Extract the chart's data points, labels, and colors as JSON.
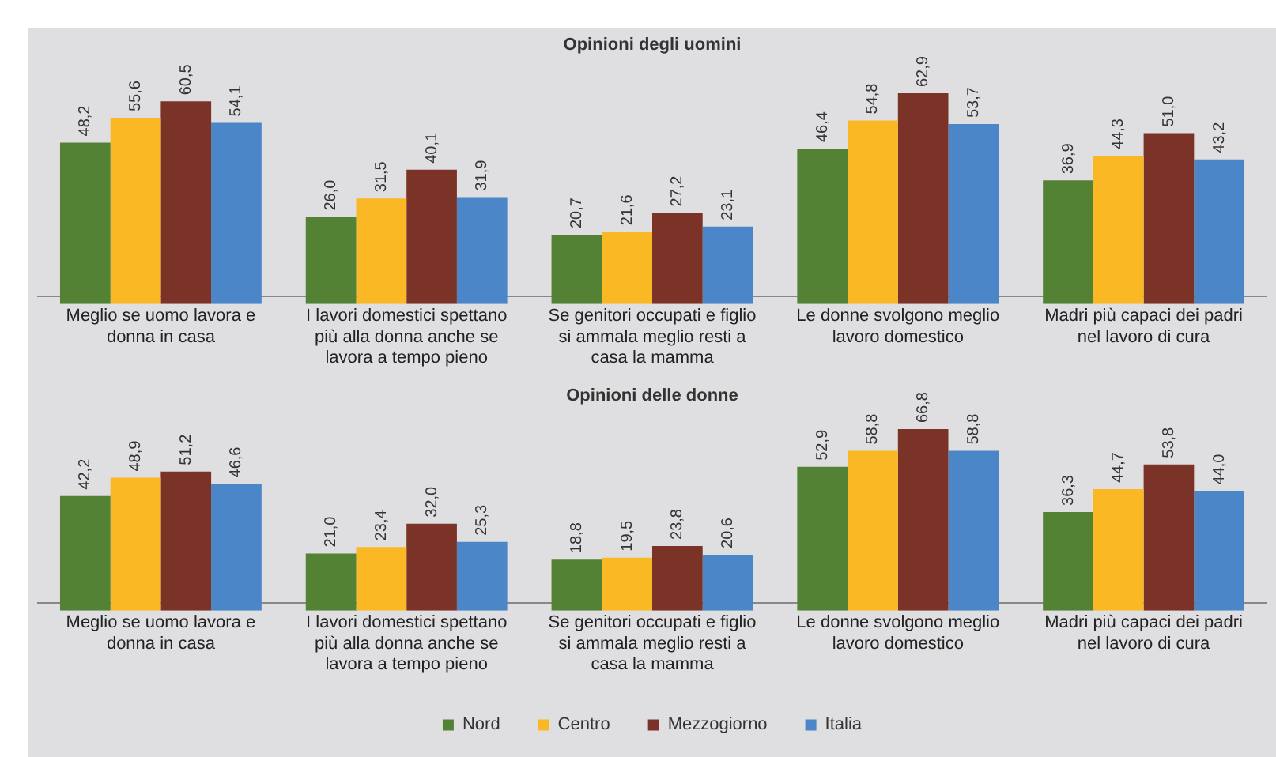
{
  "chart_data": [
    {
      "type": "bar",
      "title": "Opinioni degli uomini",
      "categories": [
        "Meglio se uomo lavora e donna in casa",
        "I lavori domestici spettano più alla donna anche se lavora a tempo pieno",
        "Se genitori occupati e figlio si ammala meglio resti a casa la mamma",
        "Le donne svolgono meglio lavoro domestico",
        "Madri più capaci dei padri nel lavoro di cura"
      ],
      "series": [
        {
          "color": "#548235",
          "values": [
            48.2,
            26.0,
            20.7,
            46.4,
            36.9
          ],
          "value_labels": [
            "48,2",
            "26,0",
            "20,7",
            "46,4",
            "36,9"
          ]
        },
        {
          "color": "#f9b824",
          "values": [
            55.6,
            31.5,
            21.6,
            54.8,
            44.3
          ],
          "value_labels": [
            "55,6",
            "31,5",
            "21,6",
            "54,8",
            "44,3"
          ]
        },
        {
          "color": "#7b3328",
          "values": [
            60.5,
            40.1,
            27.2,
            62.9,
            51.0
          ],
          "value_labels": [
            "60,5",
            "40,1",
            "27,2",
            "62,9",
            "51,0"
          ]
        },
        {
          "color": "#4a86c8",
          "values": [
            54.1,
            31.9,
            23.1,
            53.7,
            43.2
          ],
          "value_labels": [
            "54,1",
            "31,9",
            "23,1",
            "53,7",
            "43,2"
          ]
        }
      ],
      "grid": false,
      "legend": false,
      "tick_labels": "x"
    },
    {
      "type": "bar",
      "title": "Opinioni delle donne",
      "categories": [
        "Meglio se uomo lavora e donna in casa",
        "I lavori domestici spettano più alla donna anche se lavora a tempo pieno",
        "Se genitori occupati e figlio si ammala meglio resti a casa la mamma",
        "Le donne svolgono meglio lavoro domestico",
        "Madri più capaci dei padri nel lavoro di cura"
      ],
      "series": [
        {
          "name": "Nord",
          "color": "#548235",
          "values": [
            42.2,
            21.0,
            18.8,
            52.9,
            36.3
          ],
          "value_labels": [
            "42,2",
            "21,0",
            "18,8",
            "52,9",
            "36,3"
          ]
        },
        {
          "name": "Centro",
          "color": "#f9b824",
          "values": [
            48.9,
            23.4,
            19.5,
            58.8,
            44.7
          ],
          "value_labels": [
            "48,9",
            "23,4",
            "19,5",
            "58,8",
            "44,7"
          ]
        },
        {
          "name": "Mezzogiorno",
          "color": "#7b3328",
          "values": [
            51.2,
            32.0,
            23.8,
            66.8,
            53.8
          ],
          "value_labels": [
            "51,2",
            "32,0",
            "23,8",
            "66,8",
            "53,8"
          ]
        },
        {
          "name": "Italia",
          "color": "#4a86c8",
          "values": [
            46.6,
            25.3,
            20.6,
            58.8,
            44.0
          ],
          "value_labels": [
            "46,6",
            "25,3",
            "20,6",
            "58,8",
            "44,0"
          ]
        }
      ],
      "grid": false,
      "legend": "bottom",
      "tick_labels": "x"
    }
  ]
}
